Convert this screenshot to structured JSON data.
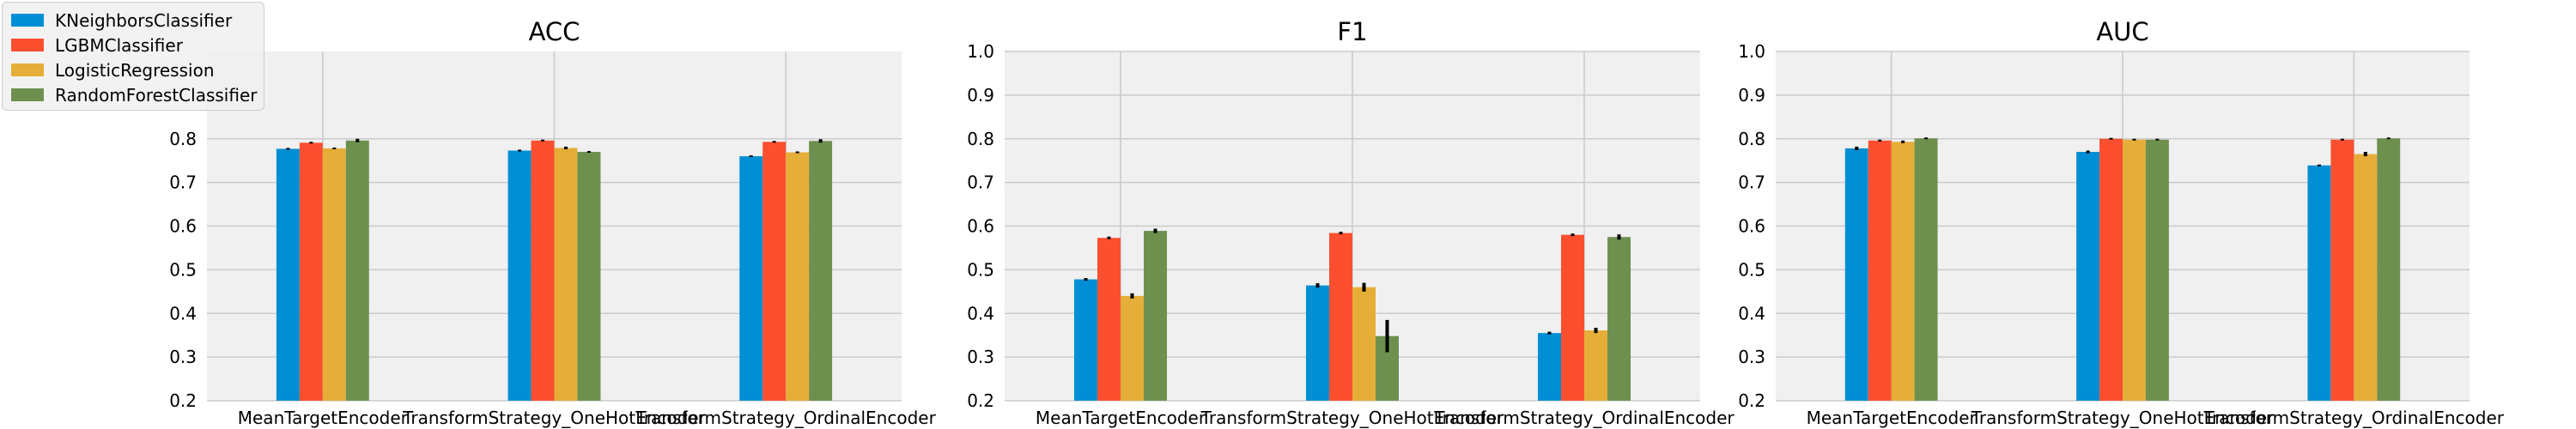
{
  "chart_data": [
    {
      "type": "bar",
      "title": "ACC",
      "categories": [
        "MeanTargetEncoder",
        "TransformStrategy_OneHotEncoder",
        "TransformStrategy_OrdinalEncoder"
      ],
      "ylim": [
        0.2,
        1.0
      ],
      "yticks": [
        "0.2",
        "0.3",
        "0.4",
        "0.5",
        "0.6",
        "0.7",
        "0.8"
      ],
      "grid": true,
      "series": [
        {
          "name": "KNeighborsClassifier",
          "values": [
            0.777,
            0.773,
            0.76
          ],
          "errors": [
            0.002,
            0.002,
            0.002
          ]
        },
        {
          "name": "LGBMClassifier",
          "values": [
            0.791,
            0.796,
            0.793
          ],
          "errors": [
            0.002,
            0.002,
            0.002
          ]
        },
        {
          "name": "LogisticRegression",
          "values": [
            0.778,
            0.779,
            0.769
          ],
          "errors": [
            0.002,
            0.003,
            0.002
          ]
        },
        {
          "name": "RandomForestClassifier",
          "values": [
            0.796,
            0.77,
            0.795
          ],
          "errors": [
            0.004,
            0.002,
            0.004
          ]
        }
      ]
    },
    {
      "type": "bar",
      "title": "F1",
      "categories": [
        "MeanTargetEncoder",
        "TransformStrategy_OneHotEncoder",
        "TransformStrategy_OrdinalEncoder"
      ],
      "ylim": [
        0.2,
        1.0
      ],
      "yticks": [
        "0.2",
        "0.3",
        "0.4",
        "0.5",
        "0.6",
        "0.7",
        "0.8",
        "0.9",
        "1.0"
      ],
      "grid": true,
      "series": [
        {
          "name": "KNeighborsClassifier",
          "values": [
            0.478,
            0.464,
            0.355
          ],
          "errors": [
            0.003,
            0.005,
            0.003
          ]
        },
        {
          "name": "LGBMClassifier",
          "values": [
            0.573,
            0.584,
            0.58
          ],
          "errors": [
            0.003,
            0.003,
            0.003
          ]
        },
        {
          "name": "LogisticRegression",
          "values": [
            0.44,
            0.46,
            0.361
          ],
          "errors": [
            0.006,
            0.01,
            0.006
          ]
        },
        {
          "name": "RandomForestClassifier",
          "values": [
            0.589,
            0.348,
            0.575
          ],
          "errors": [
            0.005,
            0.037,
            0.006
          ]
        }
      ]
    },
    {
      "type": "bar",
      "title": "AUC",
      "categories": [
        "MeanTargetEncoder",
        "TransformStrategy_OneHotEncoder",
        "TransformStrategy_OrdinalEncoder"
      ],
      "ylim": [
        0.2,
        1.0
      ],
      "yticks": [
        "0.2",
        "0.3",
        "0.4",
        "0.5",
        "0.6",
        "0.7",
        "0.8",
        "0.9",
        "1.0"
      ],
      "grid": true,
      "series": [
        {
          "name": "KNeighborsClassifier",
          "values": [
            0.778,
            0.77,
            0.739
          ],
          "errors": [
            0.004,
            0.003,
            0.002
          ]
        },
        {
          "name": "LGBMClassifier",
          "values": [
            0.796,
            0.8,
            0.798
          ],
          "errors": [
            0.002,
            0.002,
            0.002
          ]
        },
        {
          "name": "LogisticRegression",
          "values": [
            0.793,
            0.798,
            0.765
          ],
          "errors": [
            0.003,
            0.002,
            0.005
          ]
        },
        {
          "name": "RandomForestClassifier",
          "values": [
            0.801,
            0.798,
            0.801
          ],
          "errors": [
            0.002,
            0.002,
            0.002
          ]
        }
      ]
    }
  ],
  "legend": {
    "placement": "upper-left",
    "items": [
      {
        "label": "KNeighborsClassifier",
        "color": "#008fd5"
      },
      {
        "label": "LGBMClassifier",
        "color": "#fc4f30"
      },
      {
        "label": "LogisticRegression",
        "color": "#e5ae38"
      },
      {
        "label": "RandomForestClassifier",
        "color": "#6d904f"
      }
    ]
  },
  "colors": {
    "plot_background": "#f0f0f0",
    "grid": "#cbcbcb",
    "error_bar": "#000000"
  }
}
